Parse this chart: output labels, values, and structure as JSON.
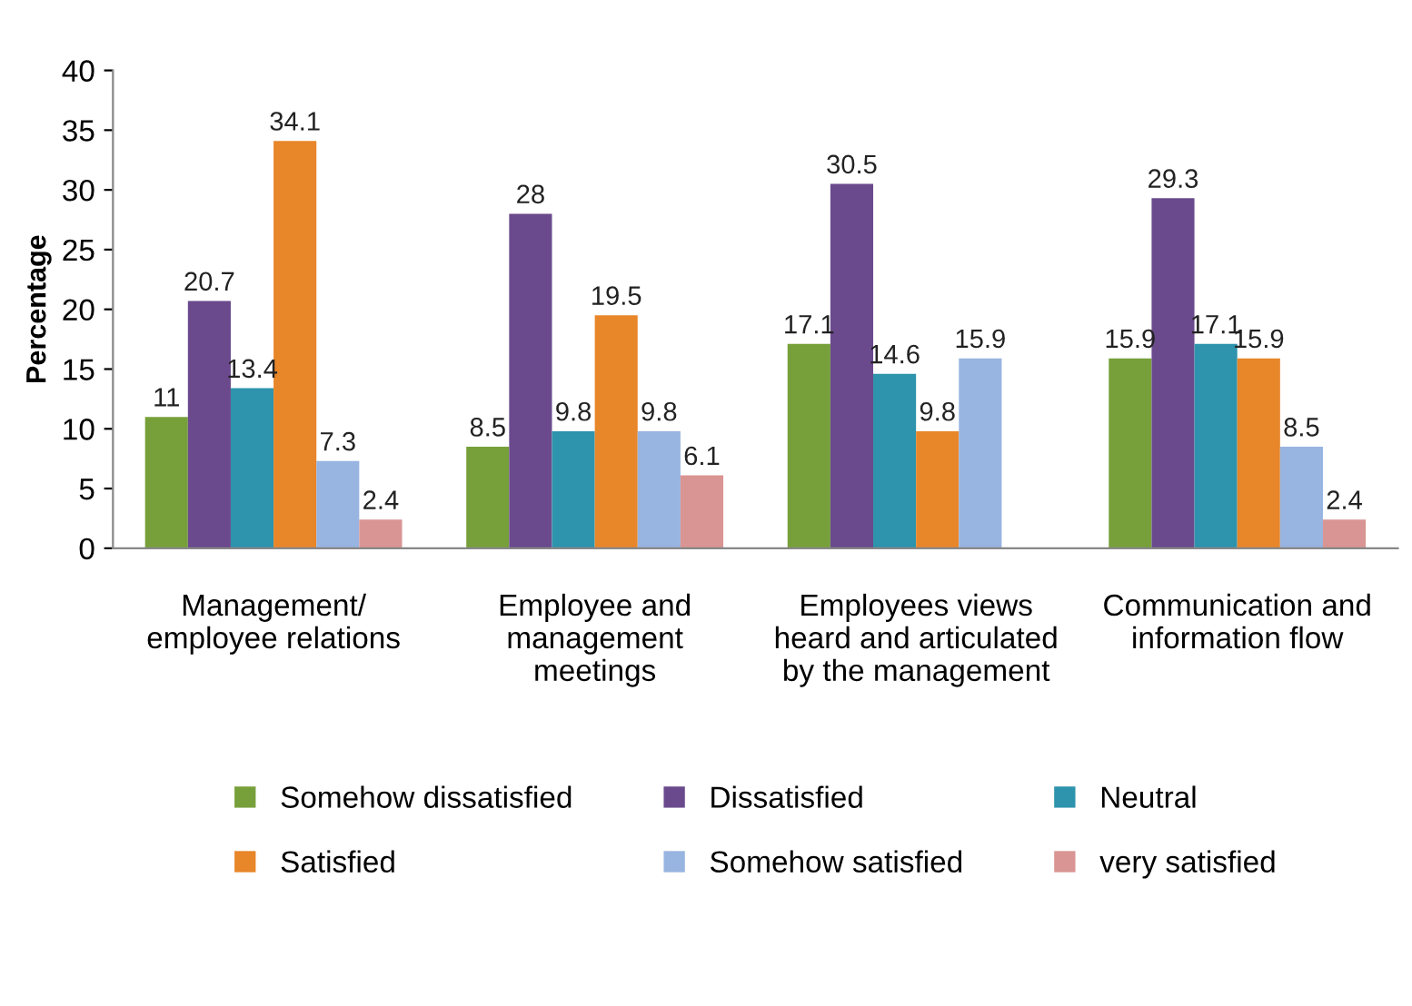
{
  "chart_data": {
    "type": "bar",
    "ylabel": "Percentage",
    "categories": [
      "Management/\nemployee relations",
      "Employee and\nmanagement\nmeetings",
      "Employees views\nheard and articulated\nby the management",
      "Communication and\ninformation flow"
    ],
    "series": [
      {
        "name": "Somehow dissatisfied",
        "color": "#77a03a",
        "values": [
          11,
          8.5,
          17.1,
          15.9
        ]
      },
      {
        "name": "Dissatisfied",
        "color": "#6a4a8c",
        "values": [
          20.7,
          28,
          30.5,
          29.3
        ]
      },
      {
        "name": "Neutral",
        "color": "#2e93ac",
        "values": [
          13.4,
          9.8,
          14.6,
          17.1
        ]
      },
      {
        "name": "Satisfied",
        "color": "#e8862a",
        "values": [
          34.1,
          19.5,
          9.8,
          15.9
        ]
      },
      {
        "name": "Somehow satisfied",
        "color": "#98b4e0",
        "values": [
          7.3,
          9.8,
          15.9,
          8.5
        ]
      },
      {
        "name": "very satisfied",
        "color": "#d99593",
        "values": [
          2.4,
          6.1,
          null,
          2.4
        ]
      }
    ],
    "ylim": [
      0,
      40
    ],
    "yticks": [
      0,
      5,
      10,
      15,
      20,
      25,
      30,
      35,
      40
    ],
    "grid": false,
    "legend": "bottom",
    "data_labels": true
  }
}
